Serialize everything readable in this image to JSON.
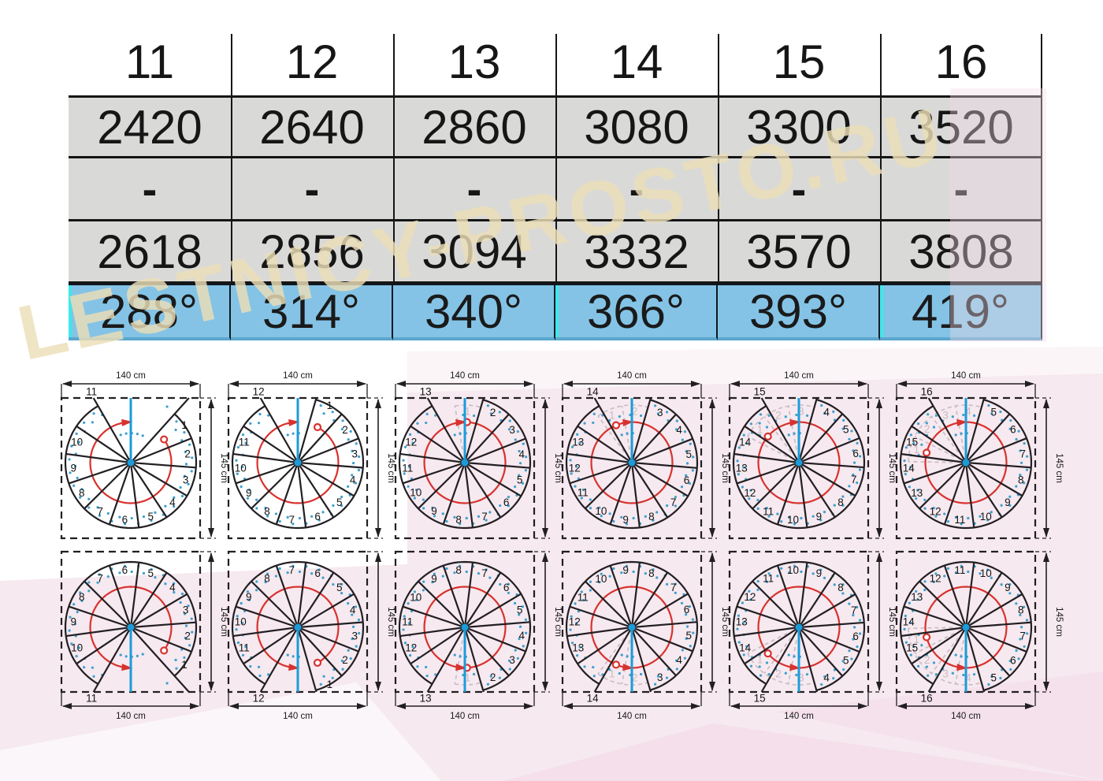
{
  "watermark": {
    "text": "LESTNICY-PROSTO.RU",
    "color": "#ecdfb8"
  },
  "table": {
    "step_counts": [
      "11",
      "12",
      "13",
      "14",
      "15",
      "16"
    ],
    "height_min": [
      "2420",
      "2640",
      "2860",
      "3080",
      "3300",
      "3520"
    ],
    "separator": [
      "-",
      "-",
      "-",
      "-",
      "-",
      "-"
    ],
    "height_max": [
      "2618",
      "2856",
      "3094",
      "3332",
      "3570",
      "3808"
    ],
    "rotation": [
      "288°",
      "314°",
      "340°",
      "366°",
      "393°",
      "419°"
    ],
    "colors": {
      "gray_row": "#d9d9d8",
      "blue_row": "#84c3e6",
      "cyan_accent": "#3fe8ea"
    }
  },
  "diagrams": {
    "width_label": "140 cm",
    "height_label": "145 cm",
    "columns": [
      {
        "steps": 11,
        "total_angle": 288
      },
      {
        "steps": 12,
        "total_angle": 314
      },
      {
        "steps": 13,
        "total_angle": 340
      },
      {
        "steps": 14,
        "total_angle": 366
      },
      {
        "steps": 15,
        "total_angle": 393
      },
      {
        "steps": 16,
        "total_angle": 419
      }
    ],
    "colors": {
      "outline": "#221f23",
      "red": "#d8322e",
      "blue": "#1b9cd9",
      "dots": "#3aa0d0",
      "ghost": "#c9bac3"
    }
  }
}
